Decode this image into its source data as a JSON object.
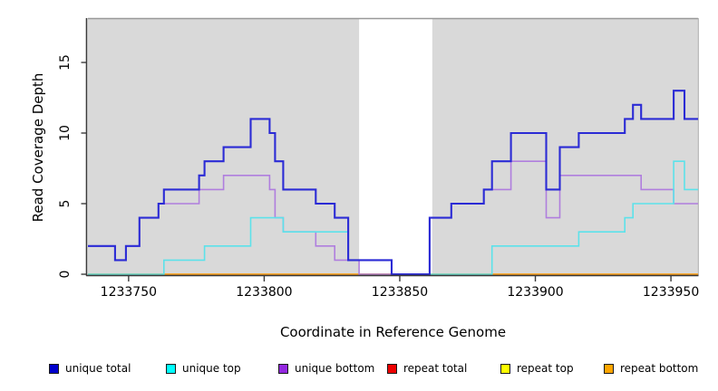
{
  "figure": {
    "xlabel": "Coordinate in Reference Genome",
    "ylabel": "Read Coverage Depth"
  },
  "axes": {
    "x_tick_labels": [
      "1233750",
      "1233800",
      "1233850",
      "1233900",
      "1233950"
    ],
    "x_tick_values": [
      1233750,
      1233800,
      1233850,
      1233900,
      1233950
    ],
    "y_tick_labels": [
      "0",
      "5",
      "10",
      "15"
    ],
    "y_tick_values": [
      0,
      5,
      10,
      15
    ]
  },
  "legend": {
    "items": [
      {
        "label": "unique total",
        "color": "#0000CD"
      },
      {
        "label": "unique top",
        "color": "#00FFFF"
      },
      {
        "label": "unique bottom",
        "color": "#9327E0"
      },
      {
        "label": "repeat total",
        "color": "#EE0000"
      },
      {
        "label": "repeat top",
        "color": "#FFFF00"
      },
      {
        "label": "repeat bottom",
        "color": "#FFA500"
      }
    ]
  },
  "chart_data": {
    "type": "line",
    "subtype": "step",
    "title": "",
    "xlabel": "Coordinate in Reference Genome",
    "ylabel": "Read Coverage Depth",
    "xlim": [
      1233735,
      1233960
    ],
    "ylim": [
      0,
      18.2
    ],
    "grid": false,
    "panel_background": "#D9D9D9",
    "gap_region": {
      "x_start": 1233835,
      "x_end": 1233862,
      "fill": "#FFFFFF"
    },
    "legend_position": "bottom",
    "series": [
      {
        "name": "unique total",
        "color": "#0000CD",
        "line_color": "#2B2BD5",
        "steps": [
          [
            1233735,
            2
          ],
          [
            1233745,
            1
          ],
          [
            1233749,
            2
          ],
          [
            1233754,
            4
          ],
          [
            1233761,
            5
          ],
          [
            1233763,
            6
          ],
          [
            1233776,
            7
          ],
          [
            1233778,
            8
          ],
          [
            1233785,
            9
          ],
          [
            1233795,
            11
          ],
          [
            1233802,
            10
          ],
          [
            1233804,
            8
          ],
          [
            1233807,
            6
          ],
          [
            1233819,
            5
          ],
          [
            1233826,
            4
          ],
          [
            1233831,
            1
          ],
          [
            1233847,
            0
          ],
          [
            1233861,
            4
          ],
          [
            1233869,
            5
          ],
          [
            1233881,
            6
          ],
          [
            1233884,
            8
          ],
          [
            1233891,
            10
          ],
          [
            1233904,
            6
          ],
          [
            1233909,
            9
          ],
          [
            1233916,
            10
          ],
          [
            1233933,
            11
          ],
          [
            1233936,
            12
          ],
          [
            1233939,
            11
          ],
          [
            1233951,
            13
          ],
          [
            1233955,
            11
          ]
        ]
      },
      {
        "name": "unique top",
        "color": "#00FFFF",
        "line_color": "#5CE2EA",
        "steps": [
          [
            1233735,
            0
          ],
          [
            1233763,
            1
          ],
          [
            1233778,
            2
          ],
          [
            1233795,
            4
          ],
          [
            1233807,
            3
          ],
          [
            1233831,
            1
          ],
          [
            1233847,
            0
          ],
          [
            1233884,
            2
          ],
          [
            1233916,
            3
          ],
          [
            1233933,
            4
          ],
          [
            1233936,
            5
          ],
          [
            1233951,
            8
          ],
          [
            1233955,
            6
          ]
        ]
      },
      {
        "name": "unique bottom",
        "color": "#9327E0",
        "line_color": "#B07EDE",
        "steps": [
          [
            1233735,
            2
          ],
          [
            1233745,
            1
          ],
          [
            1233749,
            2
          ],
          [
            1233754,
            4
          ],
          [
            1233761,
            5
          ],
          [
            1233776,
            6
          ],
          [
            1233785,
            7
          ],
          [
            1233802,
            6
          ],
          [
            1233804,
            4
          ],
          [
            1233807,
            3
          ],
          [
            1233819,
            2
          ],
          [
            1233826,
            1
          ],
          [
            1233835,
            0
          ],
          [
            1233861,
            4
          ],
          [
            1233869,
            5
          ],
          [
            1233881,
            6
          ],
          [
            1233891,
            8
          ],
          [
            1233904,
            4
          ],
          [
            1233909,
            7
          ],
          [
            1233939,
            6
          ],
          [
            1233951,
            5
          ]
        ]
      },
      {
        "name": "repeat total",
        "color": "#EE0000",
        "line_color": "#DC4A6A",
        "steps": [
          [
            1233735,
            0
          ]
        ]
      },
      {
        "name": "repeat top",
        "color": "#FFFF00",
        "line_color": "#FFFF00",
        "steps": [
          [
            1233735,
            0
          ]
        ]
      },
      {
        "name": "repeat bottom",
        "color": "#FFA500",
        "line_color": "#FF9D1E",
        "steps": [
          [
            1233735,
            0
          ]
        ]
      }
    ],
    "draw_order": [
      "repeat total",
      "repeat top",
      "repeat bottom",
      "unique bottom",
      "unique top",
      "unique total"
    ]
  }
}
